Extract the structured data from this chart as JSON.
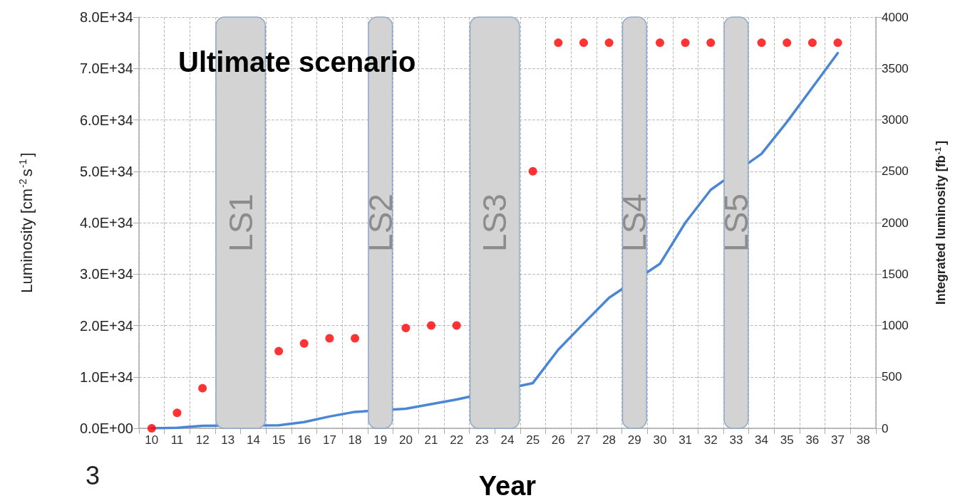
{
  "chart_data": {
    "type": "scatter",
    "title": "Ultimate scenario",
    "xlabel": "Year",
    "ylabel": "Luminosity [cm$^{-2}$s$^{-1}$]",
    "y2label": "Integrated luminosity [fb$^{-1}$]",
    "annotations": [
      "3"
    ],
    "categories": [
      "10",
      "11",
      "12",
      "13",
      "14",
      "15",
      "16",
      "17",
      "18",
      "19",
      "20",
      "21",
      "22",
      "23",
      "24",
      "25",
      "26",
      "27",
      "28",
      "29",
      "30",
      "31",
      "32",
      "33",
      "34",
      "35",
      "36",
      "37",
      "38"
    ],
    "series": [
      {
        "marker": "circle",
        "color": "#ff0000",
        "values": [
          0,
          3e+33,
          7.8e+33,
          null,
          null,
          1.5e+34,
          1.65e+34,
          1.75e+34,
          1.75e+34,
          null,
          1.95e+34,
          2e+34,
          2e+34,
          null,
          null,
          5e+34,
          7.5e+34,
          7.5e+34,
          7.5e+34,
          null,
          7.5e+34,
          7.5e+34,
          7.5e+34,
          null,
          7.5e+34,
          7.5e+34,
          7.5e+34,
          7.5e+34,
          null
        ]
      },
      {
        "type": "line",
        "marker": "none",
        "axis": "y2",
        "color": "#4a86d4",
        "values": [
          0,
          5,
          25,
          null,
          null,
          30,
          60,
          115,
          160,
          null,
          190,
          235,
          280,
          null,
          null,
          440,
          765,
          1020,
          1270,
          null,
          1600,
          2000,
          2320,
          null,
          2670,
          2980,
          3315,
          3650,
          null
        ]
      }
    ],
    "ylim": [
      0,
      8e+34
    ],
    "yticks": [
      {
        "value": 0,
        "label": "0.0E+00"
      },
      {
        "value": 1e+34,
        "label": "1.0E+34"
      },
      {
        "value": 2e+34,
        "label": "2.0E+34"
      },
      {
        "value": 3e+34,
        "label": "3.0E+34"
      },
      {
        "value": 4e+34,
        "label": "4.0E+34"
      },
      {
        "value": 5e+34,
        "label": "5.0E+34"
      },
      {
        "value": 6e+34,
        "label": "6.0E+34"
      },
      {
        "value": 7e+34,
        "label": "7.0E+34"
      },
      {
        "value": 8e+34,
        "label": "8.0E+34"
      }
    ],
    "y2lim": [
      0,
      4000
    ],
    "y2ticks": [
      0,
      500,
      1000,
      1500,
      2000,
      2500,
      3000,
      3500,
      4000
    ],
    "bands": [
      {
        "axis": "x",
        "from": "13",
        "to": "14",
        "label": "LS1",
        "color": "#d3d3d3"
      },
      {
        "axis": "x",
        "from": "19",
        "to": "19",
        "label": "LS2",
        "color": "#d3d3d3"
      },
      {
        "axis": "x",
        "from": "23",
        "to": "24",
        "label": "LS3",
        "color": "#d3d3d3"
      },
      {
        "axis": "x",
        "from": "29",
        "to": "29",
        "label": "LS4",
        "color": "#d3d3d3"
      },
      {
        "axis": "x",
        "from": "33",
        "to": "33",
        "label": "LS5",
        "color": "#d3d3d3"
      }
    ],
    "grid": true,
    "line_style": "solid"
  }
}
